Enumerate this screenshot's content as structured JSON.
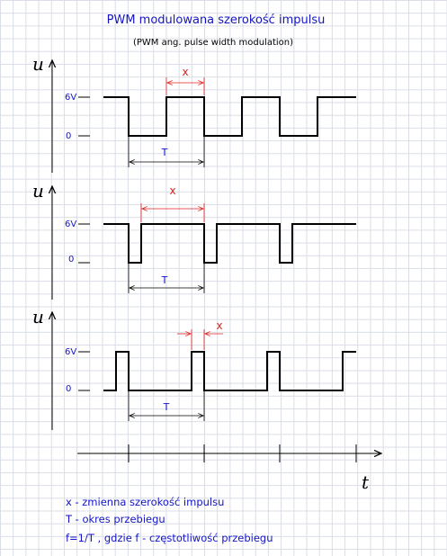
{
  "title": "PWM modulowana szerokość impulsu",
  "subtitle": "(PWM  ang. pulse width modulation)",
  "axis": {
    "u": "u",
    "t": "t"
  },
  "levels": {
    "high": "6V",
    "low": "0"
  },
  "labels": {
    "period": "T",
    "width": "x"
  },
  "legend": [
    "x -  zmienna szerokość impulsu",
    "T - okres przebiegu",
    "f=1/T  ,  gdzie f - częstotliwość przebiegu"
  ],
  "colors": {
    "text_blue": "#1414c8",
    "dimension_red": "#e02020",
    "grid": "#d9dde6",
    "line": "#000000"
  }
}
